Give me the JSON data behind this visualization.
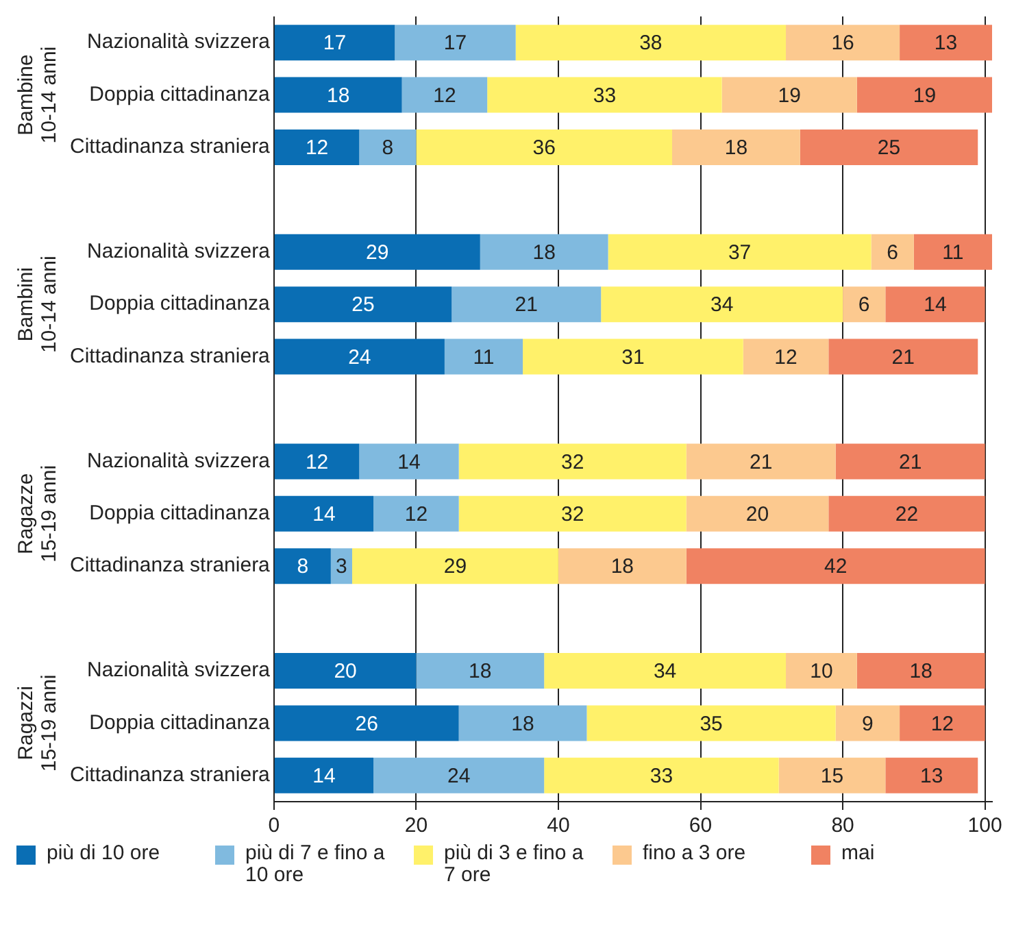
{
  "chart_data": {
    "type": "bar",
    "orientation": "horizontal",
    "stacked": true,
    "data_labels": true,
    "grid": "x",
    "legend": "bottom",
    "categories": [
      "Nazionalità svizzera",
      "Doppia cittadinanza",
      "Cittadinanza straniera",
      null,
      "Nazionalità svizzera",
      "Doppia cittadinanza",
      "Cittadinanza straniera",
      null,
      "Nazionalità svizzera",
      "Doppia cittadinanza",
      "Cittadinanza straniera",
      null,
      "Nazionalità svizzera",
      "Doppia cittadinanza",
      "Cittadinanza straniera"
    ],
    "annotations": [
      "Bambine 10-14 anni",
      "Bambini 10-14 anni",
      "Ragazze 15-19 anni",
      "Ragazzi 15-19 anni"
    ],
    "xlim": [
      0,
      101
    ],
    "xticks": [
      0,
      20,
      40,
      60,
      80,
      100
    ],
    "series": [
      {
        "name": "più di 10 ore",
        "color": "#0a6eb4",
        "values": [
          17,
          18,
          12,
          null,
          29,
          25,
          24,
          null,
          12,
          14,
          8,
          null,
          20,
          26,
          14
        ]
      },
      {
        "name": "più di 7 e fino a 10 ore",
        "color": "#80badf",
        "values": [
          17,
          12,
          8,
          null,
          18,
          21,
          11,
          null,
          14,
          12,
          3,
          null,
          18,
          18,
          24
        ]
      },
      {
        "name": "più di 3 e fino a 7 ore",
        "color": "#fff16a",
        "values": [
          38,
          33,
          36,
          null,
          37,
          34,
          31,
          null,
          32,
          32,
          29,
          null,
          34,
          35,
          33
        ]
      },
      {
        "name": "fino a 3 ore",
        "color": "#fcc98f",
        "values": [
          16,
          19,
          18,
          null,
          6,
          6,
          12,
          null,
          21,
          20,
          18,
          null,
          10,
          9,
          15
        ]
      },
      {
        "name": "mai",
        "color": "#f08262",
        "values": [
          13,
          19,
          25,
          null,
          11,
          14,
          21,
          null,
          21,
          22,
          42,
          null,
          18,
          12,
          13
        ]
      }
    ]
  }
}
